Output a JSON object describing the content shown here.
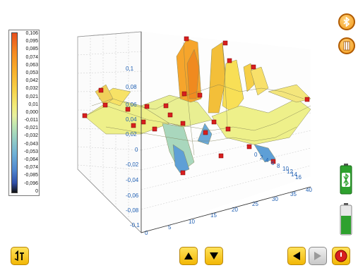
{
  "legend": {
    "labels": [
      "0,106",
      "0,095",
      "0,085",
      "0,074",
      "0,063",
      "0,053",
      "0,042",
      "0,032",
      "0,021",
      "0,01",
      "0,000",
      "-0,011",
      "-0,021",
      "-0,032",
      "-0,043",
      "-0,053",
      "-0,064",
      "-0,074",
      "-0,085",
      "-0,096",
      "0"
    ]
  },
  "axes": {
    "z_ticks": [
      "0,1",
      "0,08",
      "0,06",
      "0,04",
      "0,02",
      "0",
      "-0,02",
      "-0,04",
      "-0,06",
      "-0,08",
      "-0,1"
    ],
    "x_ticks": [
      "0",
      "5",
      "10",
      "15",
      "20",
      "25",
      "30",
      "35",
      "40"
    ],
    "y_ticks": [
      "0",
      "2",
      "4",
      "6",
      "8",
      "10",
      "12",
      "14",
      "16"
    ]
  },
  "icons": {
    "bluetooth": "bluetooth-icon",
    "grid": "grid-icon",
    "transfer": "transfer-icon",
    "up": "up-arrow-icon",
    "down": "down-arrow-icon",
    "left": "left-arrow-icon",
    "right": "right-arrow-icon",
    "stop": "stop-icon"
  },
  "colors": {
    "accent": "#f2b705",
    "battery": "#2ea12e",
    "marker": "#d81f1f"
  }
}
